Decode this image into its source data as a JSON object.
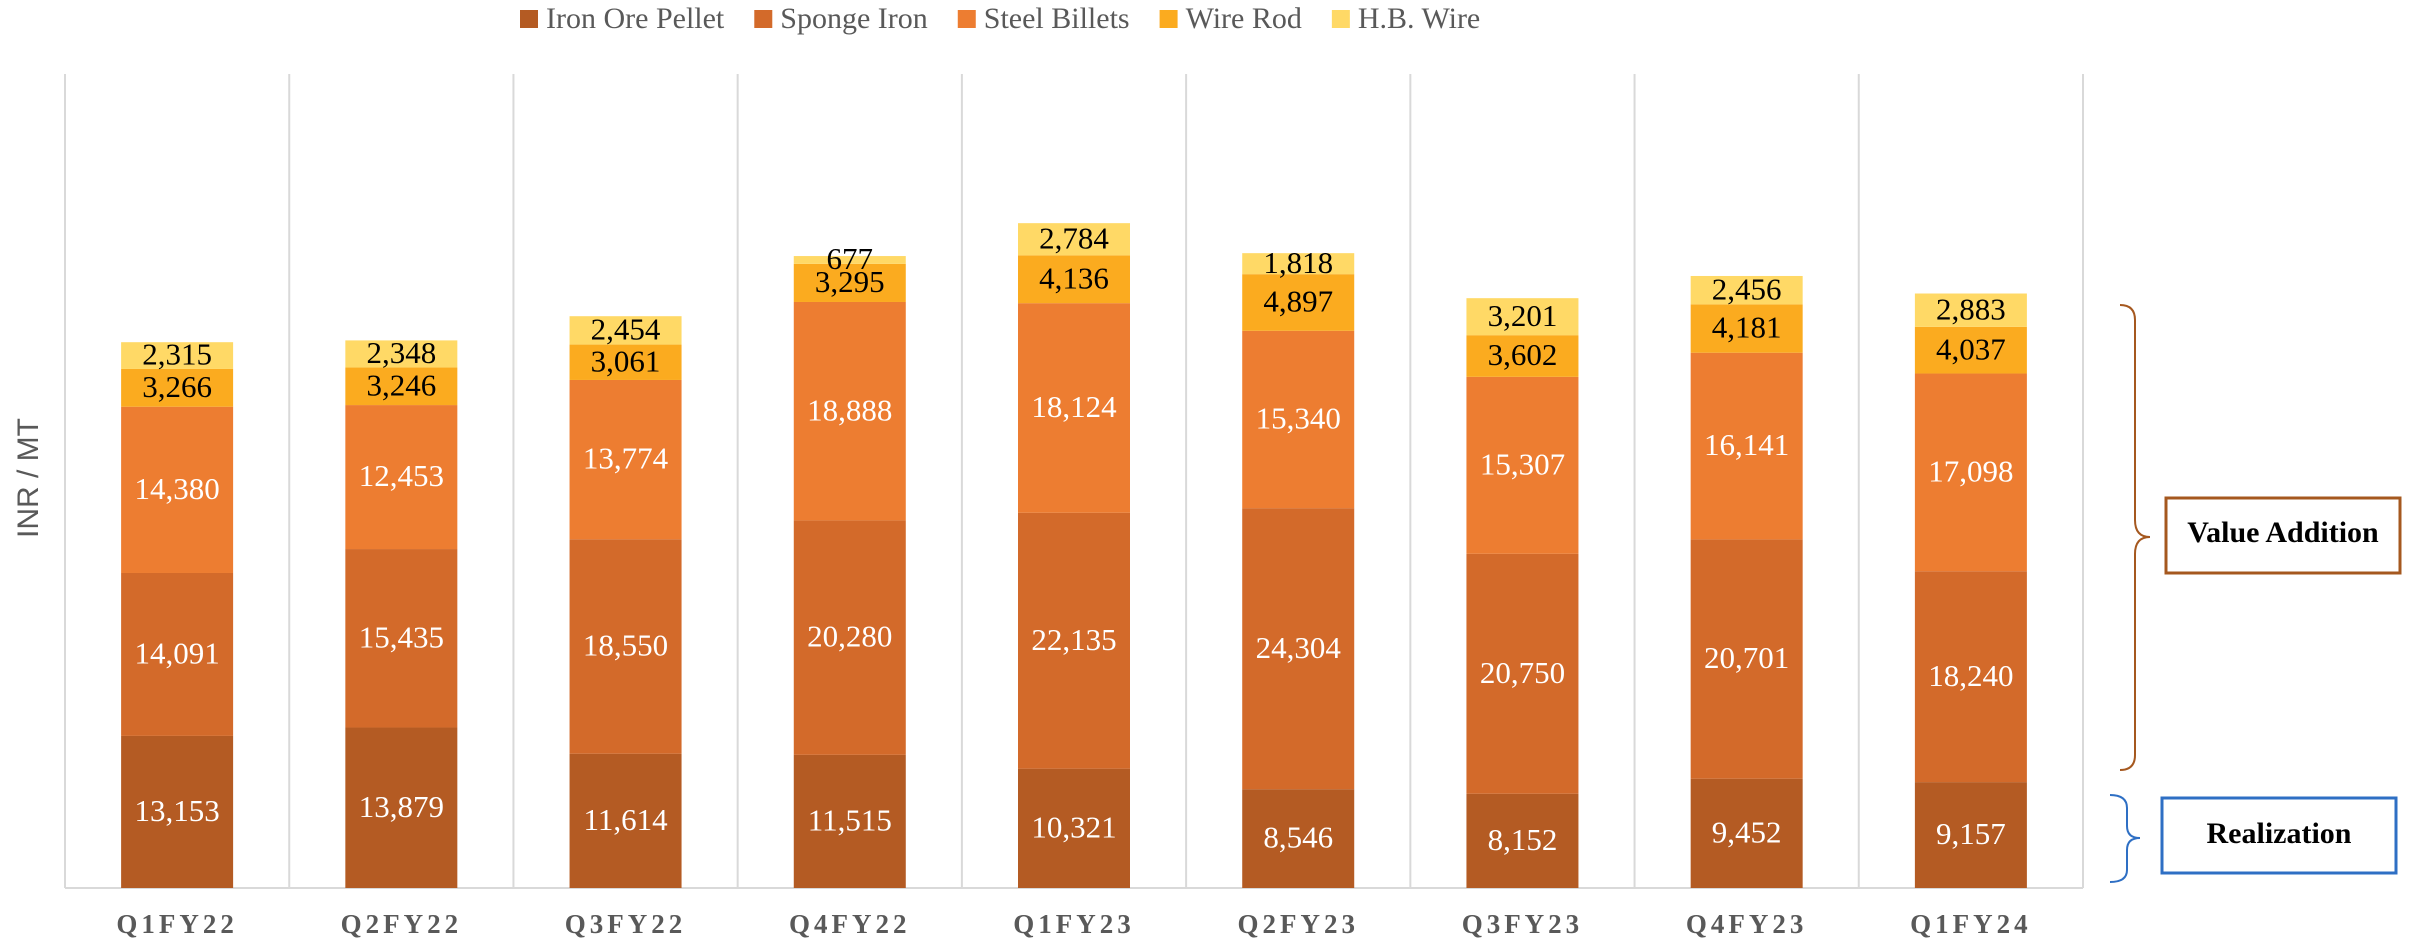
{
  "chart_data": {
    "type": "stacked_bar",
    "y_label": "INR / MT",
    "categories": [
      "Q1FY22",
      "Q2FY22",
      "Q3FY22",
      "Q4FY22",
      "Q1FY23",
      "Q2FY23",
      "Q3FY23",
      "Q4FY23",
      "Q1FY24"
    ],
    "series": [
      {
        "name": "Iron Ore Pellet",
        "color": "#b45b23",
        "values": [
          13153,
          13879,
          11614,
          11515,
          10321,
          8546,
          8152,
          9452,
          9157
        ],
        "value_labels": [
          "13,153",
          "13,879",
          "11,614",
          "11,515",
          "10,321",
          "8,546",
          "8,152",
          "9,452",
          "9,157"
        ]
      },
      {
        "name": "Sponge Iron",
        "color": "#d36a2a",
        "values": [
          14091,
          15435,
          18550,
          20280,
          22135,
          24304,
          20750,
          20701,
          18240
        ],
        "value_labels": [
          "14,091",
          "15,435",
          "18,550",
          "20,280",
          "22,135",
          "24,304",
          "20,750",
          "20,701",
          "18,240"
        ]
      },
      {
        "name": "Steel Billets",
        "color": "#ed7d31",
        "values": [
          14380,
          12453,
          13774,
          18888,
          18124,
          15340,
          15307,
          16141,
          17098
        ],
        "value_labels": [
          "14,380",
          "12,453",
          "13,774",
          "18,888",
          "18,124",
          "15,340",
          "15,307",
          "16,141",
          "17,098"
        ]
      },
      {
        "name": "Wire Rod",
        "color": "#fbab1f",
        "values": [
          3266,
          3246,
          3061,
          3295,
          4136,
          4897,
          3602,
          4181,
          4037
        ],
        "value_labels": [
          "3,266",
          "3,246",
          "3,061",
          "3,295",
          "4,136",
          "4,897",
          "3,602",
          "4,181",
          "4,037"
        ]
      },
      {
        "name": "H.B. Wire",
        "color": "#ffd966",
        "values": [
          2315,
          2348,
          2454,
          677,
          2784,
          1818,
          3201,
          2456,
          2883
        ],
        "value_labels": [
          "2,315",
          "2,348",
          "2,454",
          "677",
          "2,784",
          "1,818",
          "3,201",
          "2,456",
          "2,883"
        ]
      }
    ],
    "ylim": [
      0,
      70400
    ],
    "annotations": [
      "Value Addition",
      "Realization"
    ]
  }
}
